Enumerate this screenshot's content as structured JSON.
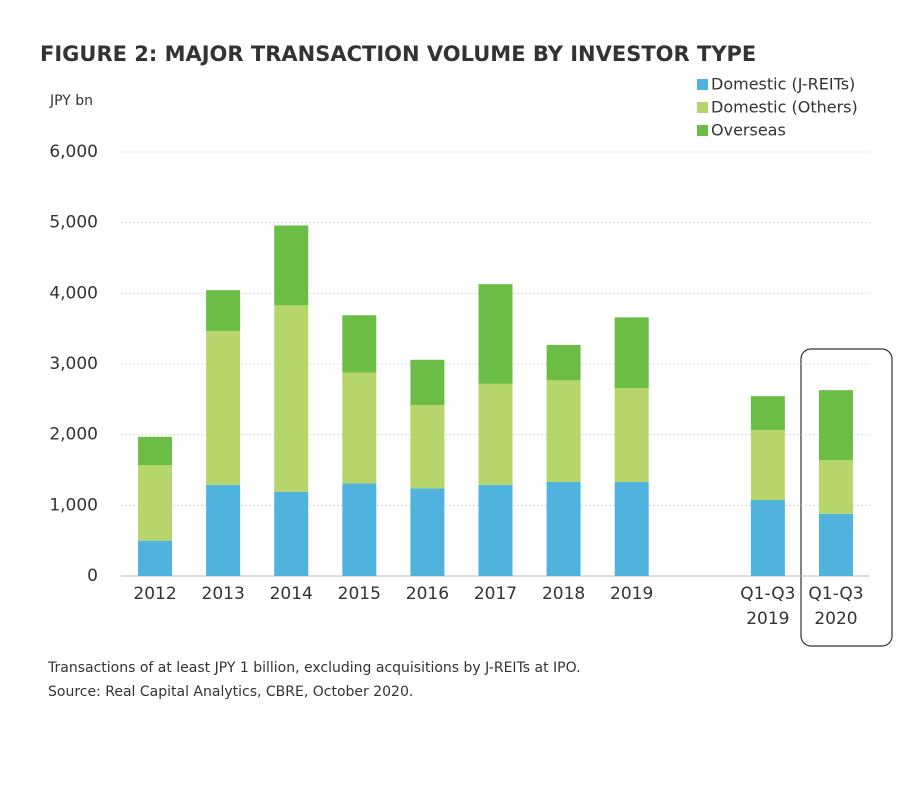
{
  "chart_data": {
    "type": "stacked-bar",
    "title": "FIGURE 2: MAJOR TRANSACTION VOLUME BY INVESTOR TYPE",
    "y_axis_label": "JPY bn",
    "categories": [
      "2012",
      "2013",
      "2014",
      "2015",
      "2016",
      "2017",
      "2018",
      "2019",
      null,
      "Q1-Q3 2019",
      "Q1-Q3 2020"
    ],
    "series": [
      {
        "name": "Domestic (J-REITs)",
        "color": "#4fb3de",
        "values": [
          500,
          1290,
          1190,
          1310,
          1240,
          1290,
          1330,
          1330,
          null,
          1075,
          880
        ]
      },
      {
        "name": "Domestic (Others)",
        "color": "#b6d66c",
        "values": [
          1070,
          2175,
          2640,
          1570,
          1180,
          1430,
          1440,
          1330,
          null,
          990,
          760
        ]
      },
      {
        "name": "Overseas",
        "color": "#6cbd45",
        "values": [
          400,
          580,
          1130,
          810,
          640,
          1410,
          500,
          1000,
          null,
          480,
          990
        ]
      }
    ],
    "ylim": [
      0,
      6000
    ],
    "yticks": [
      0,
      {
        "value": 1000,
        "label": "1,000"
      },
      {
        "value": 2000,
        "label": "2,000"
      },
      {
        "value": 3000,
        "label": "3,000"
      },
      {
        "value": 4000,
        "label": "4,000"
      },
      {
        "value": 5000,
        "label": "5,000"
      },
      {
        "value": 6000,
        "label": "6,000"
      }
    ],
    "grid": true,
    "legend": "top-right",
    "notes": [
      "Transactions of at least JPY 1 billion, excluding acquisitions by J-REITs at IPO.",
      "Source: Real Capital Analytics, CBRE, October 2020."
    ]
  }
}
